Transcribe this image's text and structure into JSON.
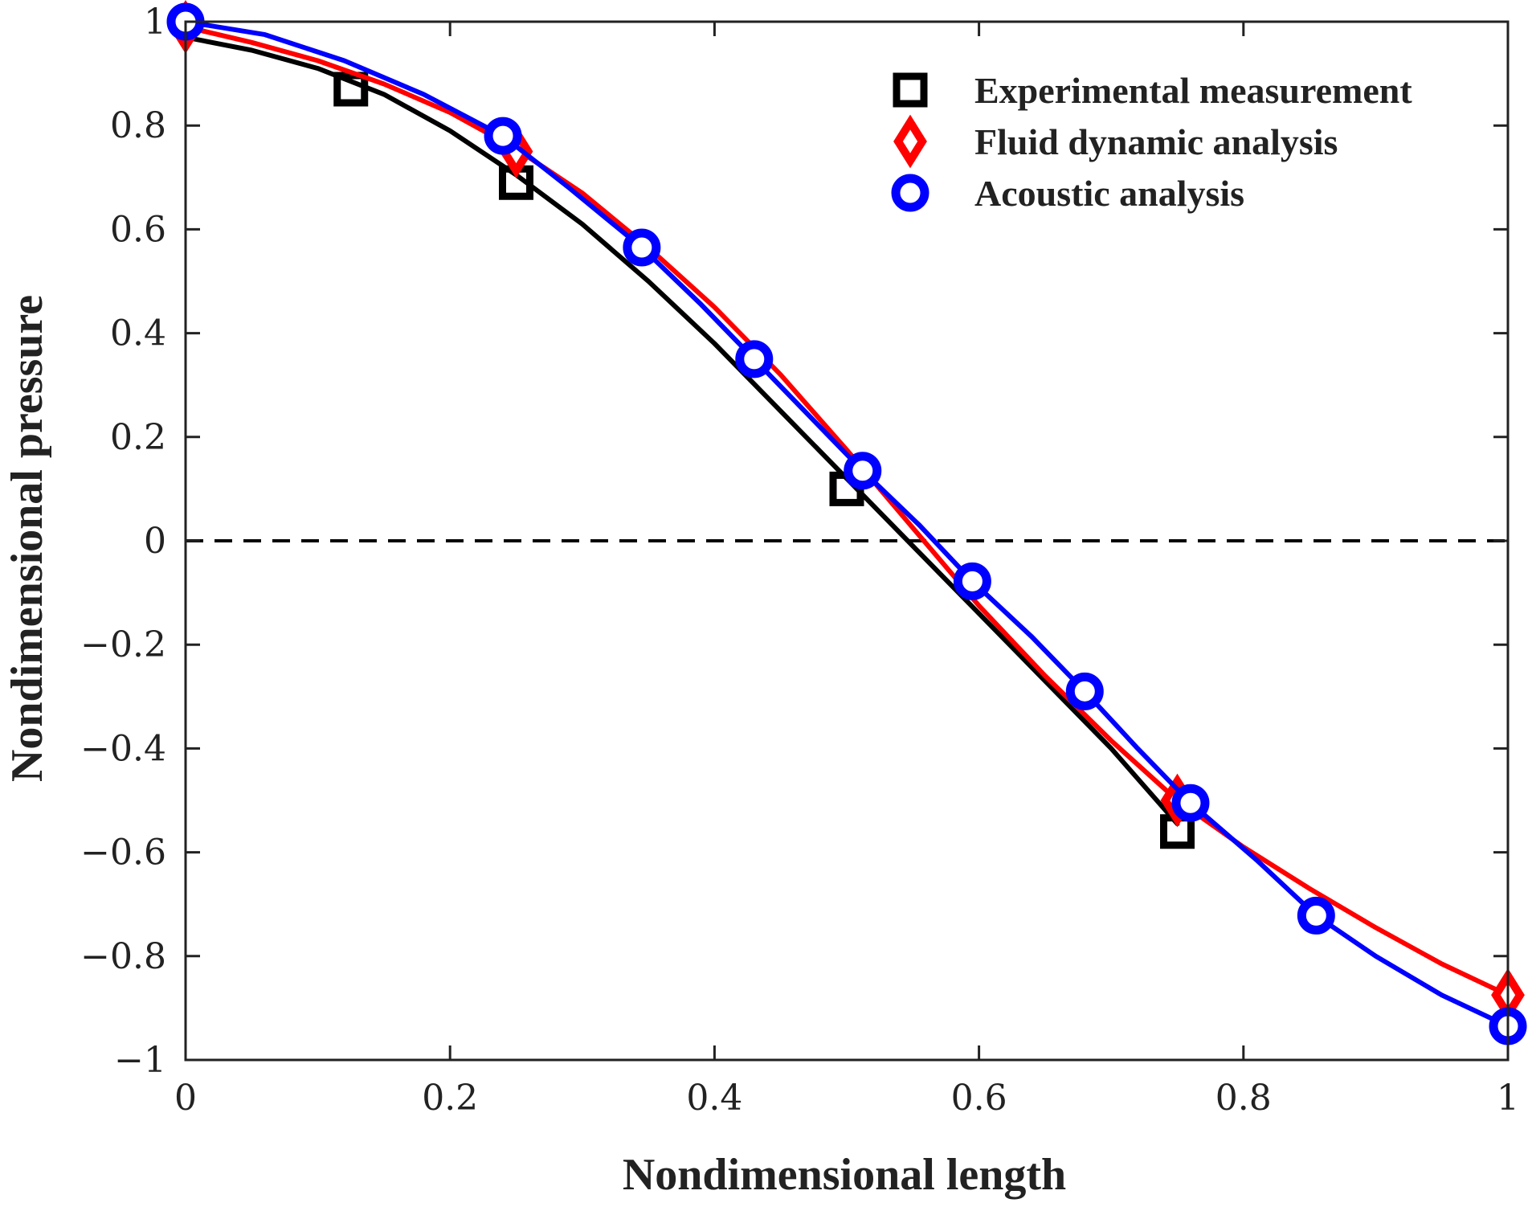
{
  "chart_data": {
    "type": "line",
    "xlabel": "Nondimensional length",
    "ylabel": "Nondimensional pressure",
    "xlim": [
      0,
      1
    ],
    "ylim": [
      -1,
      1
    ],
    "xticks": [
      0,
      0.2,
      0.4,
      0.6,
      0.8,
      1
    ],
    "yticks": [
      -1,
      -0.8,
      -0.6,
      -0.4,
      -0.2,
      0,
      0.2,
      0.4,
      0.6,
      0.8,
      1
    ],
    "xtick_labels": [
      "0",
      "0.2",
      "0.4",
      "0.6",
      "0.8",
      "1"
    ],
    "ytick_labels": [
      "−1",
      "−0.8",
      "−0.6",
      "−0.4",
      "−0.2",
      "0",
      "0.2",
      "0.4",
      "0.6",
      "0.8",
      "1"
    ],
    "reference_line": {
      "y": 0,
      "style": "dashed",
      "color": "#000000"
    },
    "legend_position": "top-right",
    "series": [
      {
        "name": "Experimental measurement",
        "color": "#000000",
        "marker": "square",
        "markers": [
          {
            "x": 0.125,
            "y": 0.87
          },
          {
            "x": 0.25,
            "y": 0.69
          },
          {
            "x": 0.5,
            "y": 0.1
          },
          {
            "x": 0.75,
            "y": -0.56
          }
        ],
        "line": [
          {
            "x": 0,
            "y": 0.97
          },
          {
            "x": 0.05,
            "y": 0.945
          },
          {
            "x": 0.1,
            "y": 0.91
          },
          {
            "x": 0.15,
            "y": 0.86
          },
          {
            "x": 0.2,
            "y": 0.79
          },
          {
            "x": 0.25,
            "y": 0.705
          },
          {
            "x": 0.3,
            "y": 0.61
          },
          {
            "x": 0.35,
            "y": 0.5
          },
          {
            "x": 0.4,
            "y": 0.38
          },
          {
            "x": 0.45,
            "y": 0.25
          },
          {
            "x": 0.5,
            "y": 0.12
          },
          {
            "x": 0.55,
            "y": -0.01
          },
          {
            "x": 0.6,
            "y": -0.14
          },
          {
            "x": 0.65,
            "y": -0.27
          },
          {
            "x": 0.7,
            "y": -0.4
          },
          {
            "x": 0.75,
            "y": -0.545
          }
        ]
      },
      {
        "name": "Fluid dynamic analysis",
        "color": "#ff0000",
        "marker": "diamond",
        "markers": [
          {
            "x": 0,
            "y": 0.99
          },
          {
            "x": 0.25,
            "y": 0.75
          },
          {
            "x": 0.75,
            "y": -0.5
          },
          {
            "x": 1.0,
            "y": -0.875
          }
        ],
        "line": [
          {
            "x": 0,
            "y": 0.99
          },
          {
            "x": 0.05,
            "y": 0.96
          },
          {
            "x": 0.1,
            "y": 0.925
          },
          {
            "x": 0.15,
            "y": 0.88
          },
          {
            "x": 0.2,
            "y": 0.825
          },
          {
            "x": 0.25,
            "y": 0.755
          },
          {
            "x": 0.3,
            "y": 0.67
          },
          {
            "x": 0.35,
            "y": 0.565
          },
          {
            "x": 0.4,
            "y": 0.45
          },
          {
            "x": 0.45,
            "y": 0.32
          },
          {
            "x": 0.5,
            "y": 0.175
          },
          {
            "x": 0.55,
            "y": 0.025
          },
          {
            "x": 0.6,
            "y": -0.125
          },
          {
            "x": 0.65,
            "y": -0.26
          },
          {
            "x": 0.7,
            "y": -0.385
          },
          {
            "x": 0.75,
            "y": -0.5
          },
          {
            "x": 0.8,
            "y": -0.59
          },
          {
            "x": 0.85,
            "y": -0.67
          },
          {
            "x": 0.9,
            "y": -0.745
          },
          {
            "x": 0.95,
            "y": -0.815
          },
          {
            "x": 1.0,
            "y": -0.875
          }
        ]
      },
      {
        "name": "Acoustic analysis",
        "color": "#0000ff",
        "marker": "circle",
        "markers": [
          {
            "x": 0,
            "y": 1.0
          },
          {
            "x": 0.24,
            "y": 0.78
          },
          {
            "x": 0.345,
            "y": 0.565
          },
          {
            "x": 0.43,
            "y": 0.35
          },
          {
            "x": 0.512,
            "y": 0.135
          },
          {
            "x": 0.595,
            "y": -0.078
          },
          {
            "x": 0.68,
            "y": -0.29
          },
          {
            "x": 0.76,
            "y": -0.505
          },
          {
            "x": 0.855,
            "y": -0.722
          },
          {
            "x": 1.0,
            "y": -0.935
          }
        ],
        "line": [
          {
            "x": 0,
            "y": 1.0
          },
          {
            "x": 0.06,
            "y": 0.975
          },
          {
            "x": 0.12,
            "y": 0.925
          },
          {
            "x": 0.18,
            "y": 0.86
          },
          {
            "x": 0.24,
            "y": 0.78
          },
          {
            "x": 0.29,
            "y": 0.68
          },
          {
            "x": 0.345,
            "y": 0.565
          },
          {
            "x": 0.39,
            "y": 0.455
          },
          {
            "x": 0.43,
            "y": 0.35
          },
          {
            "x": 0.47,
            "y": 0.245
          },
          {
            "x": 0.512,
            "y": 0.135
          },
          {
            "x": 0.555,
            "y": 0.03
          },
          {
            "x": 0.595,
            "y": -0.078
          },
          {
            "x": 0.64,
            "y": -0.185
          },
          {
            "x": 0.68,
            "y": -0.29
          },
          {
            "x": 0.72,
            "y": -0.4
          },
          {
            "x": 0.76,
            "y": -0.505
          },
          {
            "x": 0.81,
            "y": -0.615
          },
          {
            "x": 0.855,
            "y": -0.722
          },
          {
            "x": 0.9,
            "y": -0.8
          },
          {
            "x": 0.95,
            "y": -0.875
          },
          {
            "x": 1.0,
            "y": -0.935
          }
        ]
      }
    ]
  }
}
